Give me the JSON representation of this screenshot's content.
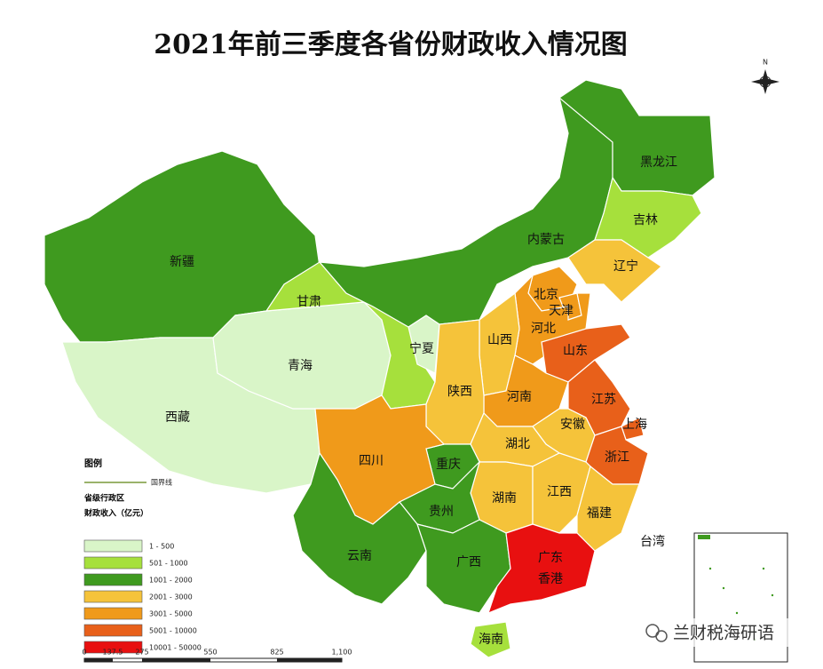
{
  "title": "2021年前三季度各省份财政收入情况图",
  "compass": "N",
  "provinces": [
    {
      "name": "新疆",
      "color": "#3f9a1f"
    },
    {
      "name": "西藏",
      "color": "#d9f5c8"
    },
    {
      "name": "青海",
      "color": "#d9f5c8"
    },
    {
      "name": "甘肃",
      "color": "#a6e03c"
    },
    {
      "name": "宁夏",
      "color": "#d9f5c8"
    },
    {
      "name": "内蒙古",
      "color": "#3f9a1f"
    },
    {
      "name": "黑龙江",
      "color": "#3f9a1f"
    },
    {
      "name": "吉林",
      "color": "#a6e03c"
    },
    {
      "name": "辽宁",
      "color": "#f5c33a"
    },
    {
      "name": "北京",
      "color": "#f09a1a"
    },
    {
      "name": "天津",
      "color": "#f09a1a"
    },
    {
      "name": "河北",
      "color": "#f09a1a"
    },
    {
      "name": "山西",
      "color": "#f5c33a"
    },
    {
      "name": "山东",
      "color": "#e8601a"
    },
    {
      "name": "河南",
      "color": "#f09a1a"
    },
    {
      "name": "陕西",
      "color": "#f5c33a"
    },
    {
      "name": "江苏",
      "color": "#e8601a"
    },
    {
      "name": "上海",
      "color": "#e8601a"
    },
    {
      "name": "安徽",
      "color": "#f5c33a"
    },
    {
      "name": "浙江",
      "color": "#e8601a"
    },
    {
      "name": "湖北",
      "color": "#f5c33a"
    },
    {
      "name": "重庆",
      "color": "#3f9a1f"
    },
    {
      "name": "四川",
      "color": "#f09a1a"
    },
    {
      "name": "湖南",
      "color": "#f5c33a"
    },
    {
      "name": "江西",
      "color": "#f5c33a"
    },
    {
      "name": "福建",
      "color": "#f5c33a"
    },
    {
      "name": "贵州",
      "color": "#3f9a1f"
    },
    {
      "name": "云南",
      "color": "#3f9a1f"
    },
    {
      "name": "广西",
      "color": "#3f9a1f"
    },
    {
      "name": "广东",
      "color": "#e81010"
    },
    {
      "name": "海南",
      "color": "#a6e03c"
    },
    {
      "name": "台湾",
      "color": "#ffffff"
    }
  ],
  "other_labels": [
    "香港"
  ],
  "legend": {
    "title": "图例",
    "border_line": "国界线",
    "subtitle": "省级行政区",
    "unit": "财政收入（亿元）",
    "items": [
      {
        "label": "1 - 500",
        "color": "#d9f5c8"
      },
      {
        "label": "501 - 1000",
        "color": "#a6e03c"
      },
      {
        "label": "1001 - 2000",
        "color": "#3f9a1f"
      },
      {
        "label": "2001 - 3000",
        "color": "#f5c33a"
      },
      {
        "label": "3001 - 5000",
        "color": "#f09a1a"
      },
      {
        "label": "5001 - 10000",
        "color": "#e8601a"
      },
      {
        "label": "10001 - 50000",
        "color": "#e81010"
      }
    ]
  },
  "scale_bar": [
    "0",
    "137.5",
    "275",
    "550",
    "825",
    "1,100"
  ],
  "watermark": "兰财税海研语"
}
